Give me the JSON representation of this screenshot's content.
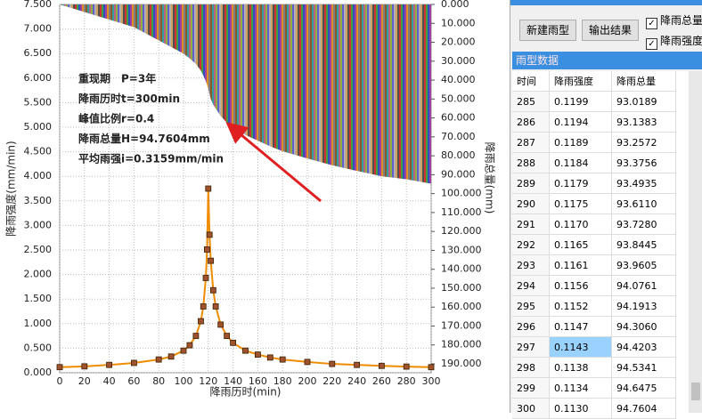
{
  "chart_data": {
    "type": "line",
    "x_label": "降雨历时(min)",
    "y_label": "降雨强度(mm/min)",
    "y2_label": "降雨总量(mm)",
    "annotations": [
      "重现期　P=3年",
      "降雨历时t=300min",
      "峰值比例r=0.4",
      "降雨总量H=94.7604mm",
      "平均雨强i=0.3159mm/min"
    ],
    "x": [
      0,
      20,
      40,
      60,
      80,
      90,
      100,
      105,
      110,
      114,
      116,
      118,
      119,
      120,
      121,
      122,
      124,
      126,
      130,
      135,
      140,
      150,
      160,
      170,
      180,
      200,
      220,
      240,
      260,
      280,
      300
    ],
    "series": [
      {
        "color": "#f08c00",
        "marker_color": "#a0522d",
        "values": [
          0.114,
          0.13,
          0.16,
          0.2,
          0.27,
          0.33,
          0.45,
          0.56,
          0.75,
          1.05,
          1.35,
          1.93,
          2.51,
          3.75,
          2.81,
          2.28,
          1.68,
          1.35,
          0.98,
          0.75,
          0.61,
          0.45,
          0.37,
          0.31,
          0.27,
          0.22,
          0.18,
          0.16,
          0.14,
          0.125,
          0.113
        ]
      },
      {
        "axis": "y2",
        "style": "stripes",
        "values": [
          0,
          4,
          8,
          12,
          19,
          22.5,
          26,
          28.5,
          31.5,
          35,
          37.6,
          40.5,
          42.5,
          44.7,
          47.5,
          50,
          53,
          55,
          59,
          62.5,
          65,
          69,
          72,
          75,
          77.6,
          81.4,
          85,
          88,
          90.8,
          92.4,
          94.7604
        ]
      }
    ],
    "xlim": [
      0,
      300
    ],
    "xticks": [
      0,
      20,
      40,
      60,
      80,
      100,
      120,
      140,
      160,
      180,
      200,
      220,
      240,
      260,
      280,
      300
    ],
    "ylim": [
      0,
      7.5
    ],
    "yticks": [
      {
        "value": 0,
        "label": "0.000"
      },
      {
        "value": 0.5,
        "label": "0.500"
      },
      {
        "value": 1,
        "label": "1.000"
      },
      {
        "value": 1.5,
        "label": "1.500"
      },
      {
        "value": 2,
        "label": "2.000"
      },
      {
        "value": 2.5,
        "label": "2.500"
      },
      {
        "value": 3,
        "label": "3.000"
      },
      {
        "value": 3.5,
        "label": "3.500"
      },
      {
        "value": 4,
        "label": "4.000"
      },
      {
        "value": 4.5,
        "label": "4.500"
      },
      {
        "value": 5,
        "label": "5.000"
      },
      {
        "value": 5.5,
        "label": "5.500"
      },
      {
        "value": 6,
        "label": "6.000"
      },
      {
        "value": 6.5,
        "label": "6.500"
      },
      {
        "value": 7,
        "label": "7.000"
      },
      {
        "value": 7.5,
        "label": "7.500"
      }
    ],
    "y2lim": [
      0,
      194.7
    ],
    "y2_inverted": true,
    "y2ticks": [
      {
        "value": 0,
        "label": "0.000"
      },
      {
        "value": 10,
        "label": "10.000"
      },
      {
        "value": 20,
        "label": "20.000"
      },
      {
        "value": 30,
        "label": "30.000"
      },
      {
        "value": 40,
        "label": "40.000"
      },
      {
        "value": 50,
        "label": "50.000"
      },
      {
        "value": 60,
        "label": "60.000"
      },
      {
        "value": 70,
        "label": "70.000"
      },
      {
        "value": 80,
        "label": "80.000"
      },
      {
        "value": 90,
        "label": "90.000"
      },
      {
        "value": 100,
        "label": "100.000"
      },
      {
        "value": 110,
        "label": "110.000"
      },
      {
        "value": 120,
        "label": "120.000"
      },
      {
        "value": 130,
        "label": "130.000"
      },
      {
        "value": 140,
        "label": "140.000"
      },
      {
        "value": 150,
        "label": "150.000"
      },
      {
        "value": 160,
        "label": "160.000"
      },
      {
        "value": 170,
        "label": "170.000"
      },
      {
        "value": 180,
        "label": "180.000"
      },
      {
        "value": 190,
        "label": "190.000"
      }
    ],
    "grid": true
  },
  "panel": {
    "buttons": [
      "新建雨型",
      "输出结果"
    ],
    "checkboxes": [
      {
        "label": "降雨总量",
        "checked": true
      },
      {
        "label": "降雨强度",
        "checked": true
      }
    ],
    "table": {
      "title": "雨型数据",
      "header": [
        "时间",
        "降雨强度",
        "降雨总量"
      ],
      "rows": [
        [
          285,
          "0.1199",
          "93.0189"
        ],
        [
          286,
          "0.1194",
          "93.1383"
        ],
        [
          287,
          "0.1189",
          "93.2572"
        ],
        [
          288,
          "0.1184",
          "93.3756"
        ],
        [
          289,
          "0.1179",
          "93.4935"
        ],
        [
          290,
          "0.1175",
          "93.6110"
        ],
        [
          291,
          "0.1170",
          "93.7280"
        ],
        [
          292,
          "0.1165",
          "93.8445"
        ],
        [
          293,
          "0.1161",
          "93.9605"
        ],
        [
          294,
          "0.1156",
          "94.0761"
        ],
        [
          295,
          "0.1152",
          "94.1913"
        ],
        [
          296,
          "0.1147",
          "94.3060"
        ],
        [
          297,
          "0.1143",
          "94.4203"
        ],
        [
          298,
          "0.1138",
          "94.5341"
        ],
        [
          299,
          "0.1134",
          "94.6475"
        ],
        [
          300,
          "0.1130",
          "94.7604"
        ]
      ],
      "selected": [
        12,
        1
      ]
    }
  }
}
